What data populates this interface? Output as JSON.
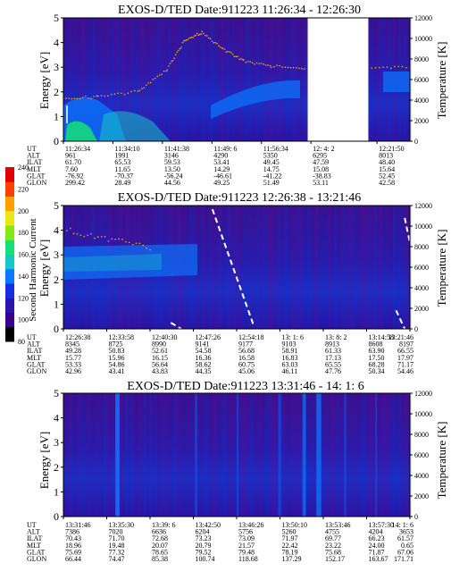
{
  "colorbar": {
    "label": "Second Harmonic Current",
    "ticks": [
      "240",
      "220",
      "200",
      "180",
      "160",
      "140",
      "120",
      "100",
      "80"
    ]
  },
  "chart_data": [
    {
      "type": "heatmap",
      "title": "EXOS-D/TED   Date:911223  11:26:34 - 12:26:30",
      "ylabel": "Energy [eV]",
      "y2label": "Temperature [K]",
      "ylim": [
        0,
        5
      ],
      "y2lim": [
        0,
        12000
      ],
      "yticks": [
        "0",
        "1",
        "2",
        "3",
        "4",
        "5"
      ],
      "y2ticks": [
        "0",
        "2000",
        "4000",
        "6000",
        "8000",
        "10000",
        "12000"
      ],
      "data_gap": [
        0.705,
        0.88
      ],
      "row_labels": [
        "UT",
        "ALT",
        "ILAT",
        "MLT",
        "GLAT",
        "GLON"
      ],
      "columns": [
        {
          "UT": "11:26:34",
          "ALT": "961",
          "ILAT": "61.70",
          "MLT": "7.60",
          "GLAT": "-76.92",
          "GLON": "299.42"
        },
        {
          "UT": "11:34:10",
          "ALT": "1991",
          "ILAT": "65.53",
          "MLT": "11.65",
          "GLAT": "-70.37",
          "GLON": "28.49"
        },
        {
          "UT": "11:41:38",
          "ALT": "3146",
          "ILAT": "59.53",
          "MLT": "13.50",
          "GLAT": "-56.24",
          "GLON": "44.56"
        },
        {
          "UT": "11:49: 6",
          "ALT": "4290",
          "ILAT": "53.41",
          "MLT": "14.29",
          "GLAT": "-46.61",
          "GLON": "49.25"
        },
        {
          "UT": "11:56:34",
          "ALT": "5350",
          "ILAT": "49.45",
          "MLT": "14.75",
          "GLAT": "-41.22",
          "GLON": "51.49"
        },
        {
          "UT": "12: 4: 2",
          "ALT": "6295",
          "ILAT": "47.59",
          "MLT": "15.08",
          "GLAT": "-38.83",
          "GLON": "53.11"
        },
        {
          "UT": "12:21:50",
          "ALT": "8013",
          "ILAT": "48.40",
          "MLT": "15.64",
          "GLAT": "52.45",
          "GLON": "42.58"
        }
      ]
    },
    {
      "type": "heatmap",
      "title": "EXOS-D/TED   Date:911223  12:26:38 - 13:21:46",
      "ylabel": "Energy [eV]",
      "y2label": "Temperature [K]",
      "ylim": [
        0,
        5
      ],
      "y2lim": [
        0,
        12000
      ],
      "yticks": [
        "0",
        "1",
        "2",
        "3",
        "4",
        "5"
      ],
      "y2ticks": [
        "0",
        "2000",
        "4000",
        "6000",
        "8000",
        "10000",
        "12000"
      ],
      "row_labels": [
        "UT",
        "ALT",
        "ILAT",
        "MLT",
        "GLAT",
        "GLON"
      ],
      "columns": [
        {
          "UT": "12:26:38",
          "ALT": "8345",
          "ILAT": "49.28",
          "MLT": "15.77",
          "GLAT": "53.33",
          "GLON": "42.96"
        },
        {
          "UT": "12:33:58",
          "ALT": "8725",
          "ILAT": "50.83",
          "MLT": "15.96",
          "GLAT": "54.86",
          "GLON": "43.41"
        },
        {
          "UT": "12:40:30",
          "ALT": "8990",
          "ILAT": "52.61",
          "MLT": "16.15",
          "GLAT": "56.64",
          "GLON": "43.83"
        },
        {
          "UT": "12:47:26",
          "ALT": "9141",
          "ILAT": "54.58",
          "MLT": "16.36",
          "GLAT": "58.62",
          "GLON": "44.35"
        },
        {
          "UT": "12:54:18",
          "ALT": "9177",
          "ILAT": "56.68",
          "MLT": "16.58",
          "GLAT": "60.75",
          "GLON": "45.06"
        },
        {
          "UT": "13: 1: 6",
          "ALT": "9103",
          "ILAT": "58.91",
          "MLT": "16.83",
          "GLAT": "63.03",
          "GLON": "46.11"
        },
        {
          "UT": "13: 8: 2",
          "ALT": "8913",
          "ILAT": "61.33",
          "MLT": "17.13",
          "GLAT": "65.55",
          "GLON": "47.76"
        },
        {
          "UT": "13:14:58",
          "ALT": "8608",
          "ILAT": "63.90",
          "MLT": "17.50",
          "GLAT": "68.28",
          "GLON": "50.34"
        },
        {
          "UT": "13:21:46",
          "ALT": "8197",
          "ILAT": "66.55",
          "MLT": "17.97",
          "GLAT": "71.17",
          "GLON": "54.46"
        }
      ]
    },
    {
      "type": "heatmap",
      "title": "EXOS-D/TED   Date:911223  13:31:46 - 14: 1: 6",
      "ylabel": "Energy [eV]",
      "y2label": "Temperature [K]",
      "ylim": [
        0,
        5
      ],
      "y2lim": [
        0,
        12000
      ],
      "yticks": [
        "0",
        "1",
        "2",
        "3",
        "4",
        "5"
      ],
      "y2ticks": [
        "0",
        "2000",
        "4000",
        "6000",
        "8000",
        "10000",
        "12000"
      ],
      "row_labels": [
        "UT",
        "ALT",
        "ILAT",
        "MLT",
        "GLAT",
        "GLON"
      ],
      "columns": [
        {
          "UT": "13:31:46",
          "ALT": "7386",
          "ILAT": "70.43",
          "MLT": "18.96",
          "GLAT": "75.69",
          "GLON": "66.44"
        },
        {
          "UT": "13:35:30",
          "ALT": "7020",
          "ILAT": "71.70",
          "MLT": "19.48",
          "GLAT": "77.32",
          "GLON": "74.47"
        },
        {
          "UT": "13:39: 6",
          "ALT": "6636",
          "ILAT": "72.68",
          "MLT": "20.07",
          "GLAT": "78.65",
          "GLON": "85.38"
        },
        {
          "UT": "13:42:50",
          "ALT": "6204",
          "ILAT": "73.23",
          "MLT": "20.79",
          "GLAT": "79.52",
          "GLON": "100.74"
        },
        {
          "UT": "13:46:26",
          "ALT": "5756",
          "ILAT": "73.09",
          "MLT": "21.57",
          "GLAT": "79.48",
          "GLON": "118.68"
        },
        {
          "UT": "13:50:10",
          "ALT": "5260",
          "ILAT": "71.97",
          "MLT": "22.42",
          "GLAT": "78.19",
          "GLON": "137.29"
        },
        {
          "UT": "13:53:46",
          "ALT": "4755",
          "ILAT": "69.77",
          "MLT": "23.22",
          "GLAT": "75.68",
          "GLON": "152.17"
        },
        {
          "UT": "13:57:30",
          "ALT": "4204",
          "ILAT": "66.23",
          "MLT": "24.00",
          "GLAT": "71.87",
          "GLON": "163.67"
        },
        {
          "UT": "14: 1: 6",
          "ALT": "3653",
          "ILAT": "61.57",
          "MLT": "0.65",
          "GLAT": "67.06",
          "GLON": "171.71"
        }
      ]
    }
  ]
}
